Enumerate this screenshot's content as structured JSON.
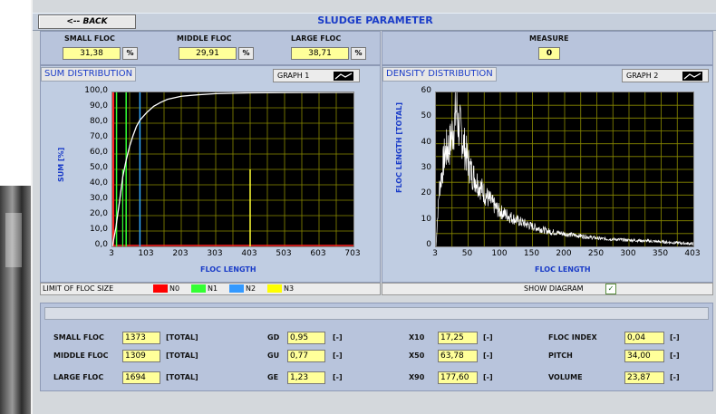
{
  "header": {
    "back_label": "<-- BACK",
    "title": "SLUDGE PARAMETER"
  },
  "flocs": [
    {
      "label": "SMALL FLOC",
      "value": "31,38",
      "unit": "%"
    },
    {
      "label": "MIDDLE FLOC",
      "value": "29,91",
      "unit": "%"
    },
    {
      "label": "LARGE FLOC",
      "value": "38,71",
      "unit": "%"
    }
  ],
  "measure": {
    "label": "MEASURE",
    "value": "0"
  },
  "graph1": {
    "panel_title": "SUM DISTRIBUTION",
    "button_label": "GRAPH 1",
    "ylabel": "SUM [%]",
    "xlabel": "FLOC LENGTH",
    "yticks": [
      "100,0",
      "90,0",
      "80,0",
      "70,0",
      "60,0",
      "50,0",
      "40,0",
      "30,0",
      "20,0",
      "10,0",
      "0,0"
    ],
    "xticks": [
      "3",
      "103",
      "203",
      "303",
      "403",
      "503",
      "603",
      "703"
    ]
  },
  "graph2": {
    "panel_title": "DENSITY DISTRIBUTION",
    "button_label": "GRAPH 2",
    "ylabel": "FLOC LENGTH [TOTAL]",
    "xlabel": "FLOC LENGTH",
    "yticks": [
      "60",
      "50",
      "40",
      "30",
      "20",
      "10",
      "0"
    ],
    "xticks": [
      "3",
      "50",
      "100",
      "150",
      "200",
      "250",
      "300",
      "350",
      "403"
    ]
  },
  "legend": {
    "label": "LIMIT OF FLOC SIZE",
    "items": [
      {
        "name": "N0",
        "color": "#ff0000"
      },
      {
        "name": "N1",
        "color": "#33ff33"
      },
      {
        "name": "N2",
        "color": "#3399ff"
      },
      {
        "name": "N3",
        "color": "#ffff00"
      }
    ]
  },
  "show_diagram": {
    "label": "SHOW DIAGRAM",
    "checked": "✓"
  },
  "stats": {
    "col1": [
      {
        "label": "SMALL FLOC",
        "value": "1373",
        "unit": "[TOTAL]"
      },
      {
        "label": "MIDDLE FLOC",
        "value": "1309",
        "unit": "[TOTAL]"
      },
      {
        "label": "LARGE FLOC",
        "value": "1694",
        "unit": "[TOTAL]"
      }
    ],
    "col2": [
      {
        "label": "GD",
        "value": "0,95",
        "unit": "[-]"
      },
      {
        "label": "GU",
        "value": "0,77",
        "unit": "[-]"
      },
      {
        "label": "GE",
        "value": "1,23",
        "unit": "[-]"
      }
    ],
    "col3": [
      {
        "label": "X10",
        "value": "17,25",
        "unit": "[-]"
      },
      {
        "label": "X50",
        "value": "63,78",
        "unit": "[-]"
      },
      {
        "label": "X90",
        "value": "177,60",
        "unit": "[-]"
      }
    ],
    "col4": [
      {
        "label": "FLOC INDEX",
        "value": "0,04",
        "unit": "[-]"
      },
      {
        "label": "PITCH",
        "value": "34,00",
        "unit": "[-]"
      },
      {
        "label": "VOLUME",
        "value": "23,87",
        "unit": "[-]"
      }
    ]
  },
  "chart_data": [
    {
      "type": "line",
      "title": "SUM DISTRIBUTION",
      "xlabel": "FLOC LENGTH",
      "ylabel": "SUM [%]",
      "xlim": [
        3,
        703
      ],
      "ylim": [
        0,
        100
      ],
      "series": [
        {
          "values": [
            [
              3,
              0
            ],
            [
              13,
              12
            ],
            [
              23,
              28
            ],
            [
              33,
              45
            ],
            [
              43,
              56
            ],
            [
              53,
              65
            ],
            [
              63,
              72
            ],
            [
              73,
              78
            ],
            [
              83,
              82
            ],
            [
              103,
              87
            ],
            [
              123,
              91
            ],
            [
              143,
              93.5
            ],
            [
              163,
              95.5
            ],
            [
              203,
              97.5
            ],
            [
              253,
              98.5
            ],
            [
              303,
              99.2
            ],
            [
              403,
              99.7
            ],
            [
              503,
              99.9
            ],
            [
              703,
              100
            ]
          ]
        }
      ],
      "limits": [
        {
          "name": "N0",
          "x": 3
        },
        {
          "name": "N1",
          "x": 15,
          "x2": 43
        },
        {
          "name": "N2",
          "x": 83
        },
        {
          "name": "N3",
          "x": 403
        }
      ]
    },
    {
      "type": "line",
      "title": "DENSITY DISTRIBUTION",
      "xlabel": "FLOC LENGTH",
      "ylabel": "FLOC LENGTH [TOTAL]",
      "xlim": [
        3,
        403
      ],
      "ylim": [
        0,
        60
      ],
      "series": [
        {
          "values": [
            [
              3,
              0
            ],
            [
              8,
              22
            ],
            [
              12,
              28
            ],
            [
              16,
              35
            ],
            [
              20,
              38
            ],
            [
              24,
              39
            ],
            [
              28,
              44
            ],
            [
              32,
              48
            ],
            [
              35,
              54
            ],
            [
              38,
              47
            ],
            [
              42,
              45
            ],
            [
              46,
              40
            ],
            [
              50,
              36
            ],
            [
              55,
              31
            ],
            [
              60,
              28
            ],
            [
              65,
              26
            ],
            [
              70,
              24
            ],
            [
              80,
              20
            ],
            [
              90,
              17
            ],
            [
              100,
              14
            ],
            [
              115,
              12
            ],
            [
              130,
              10
            ],
            [
              150,
              8
            ],
            [
              175,
              6
            ],
            [
              200,
              5
            ],
            [
              230,
              4
            ],
            [
              260,
              3
            ],
            [
              300,
              2.5
            ],
            [
              340,
              2
            ],
            [
              403,
              1
            ]
          ]
        }
      ]
    }
  ]
}
